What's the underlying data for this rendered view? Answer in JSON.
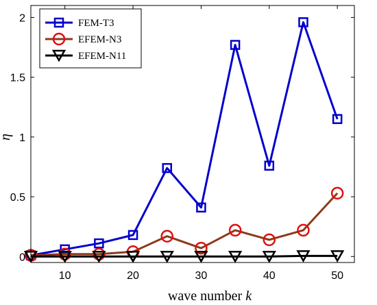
{
  "chart_data": {
    "type": "line",
    "xlabel": "wave number",
    "xlabel_var": "k",
    "ylabel": "η",
    "xlim": [
      5,
      52.5
    ],
    "ylim": [
      -0.05,
      2.1
    ],
    "xticks": [
      10,
      20,
      30,
      40,
      50
    ],
    "yticks": [
      0,
      0.5,
      1,
      1.5,
      2
    ],
    "ytick_labels": [
      "0",
      "0.5",
      "1",
      "1.5",
      "2"
    ],
    "legend_position": "top-left",
    "x": [
      5,
      10,
      15,
      20,
      25,
      30,
      35,
      40,
      45,
      50
    ],
    "series": [
      {
        "name": "FEM-T3",
        "color": "#0000cc",
        "marker": "square",
        "values": [
          0.01,
          0.06,
          0.11,
          0.18,
          0.74,
          0.41,
          1.77,
          0.76,
          1.96,
          1.15
        ]
      },
      {
        "name": "EFEM-N3",
        "color": "#e01010",
        "line_color": "#8b3a1a",
        "marker": "circle",
        "values": [
          0.01,
          0.02,
          0.02,
          0.04,
          0.17,
          0.07,
          0.22,
          0.14,
          0.22,
          0.53
        ]
      },
      {
        "name": "EFEM-N11",
        "color": "#000000",
        "marker": "triangle-down",
        "values": [
          0.0,
          0.0,
          0.0,
          0.0,
          0.0,
          0.0,
          0.0,
          0.0,
          0.005,
          0.005
        ]
      }
    ]
  }
}
